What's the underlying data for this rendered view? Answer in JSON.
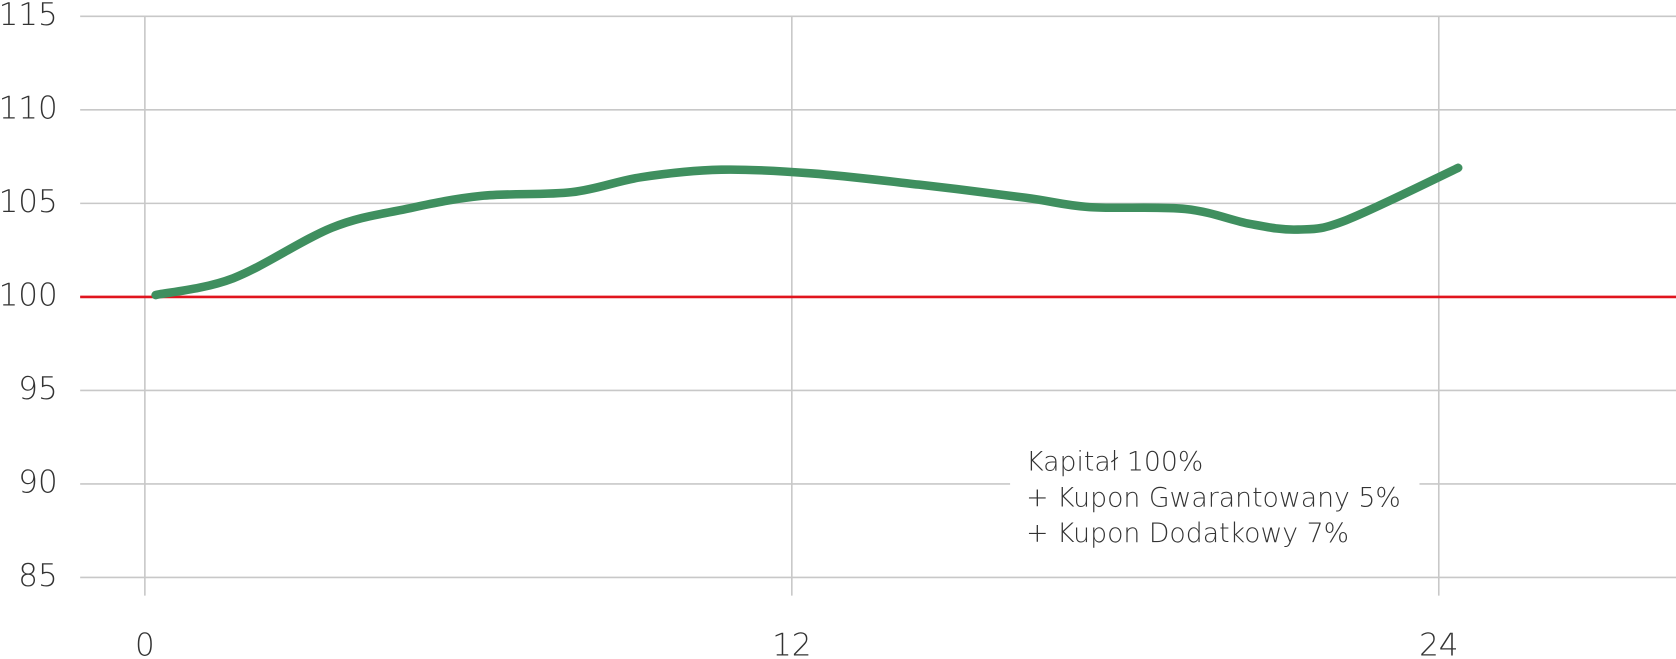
{
  "chart_data": {
    "type": "line",
    "x": [
      0.2,
      1.64,
      3.47,
      4.85,
      6.24,
      7.92,
      9.21,
      10.69,
      12.38,
      14.36,
      16.34,
      17.52,
      19.3,
      20.5,
      21.39,
      22.28,
      24.36
    ],
    "series": [
      {
        "color": "#3f8f5f",
        "values": [
          100.1,
          101.0,
          103.7,
          104.7,
          105.4,
          105.6,
          106.4,
          106.8,
          106.6,
          106.0,
          105.3,
          104.8,
          104.7,
          103.9,
          103.6,
          104.1,
          106.9
        ]
      }
    ],
    "xlim": [
      -1.2,
      28.4
    ],
    "xticks": [
      0,
      12,
      24
    ],
    "ylim": [
      85,
      115
    ],
    "yticks": [
      85,
      90,
      95,
      100,
      105,
      110,
      115
    ],
    "grid": true,
    "reference_line": {
      "value": 100,
      "color": "#e0141e"
    },
    "annotation": [
      "Kapitał 100%",
      "+ Kupon Gwarantowany 5%",
      "+ Kupon Dodatkowy 7%"
    ]
  }
}
